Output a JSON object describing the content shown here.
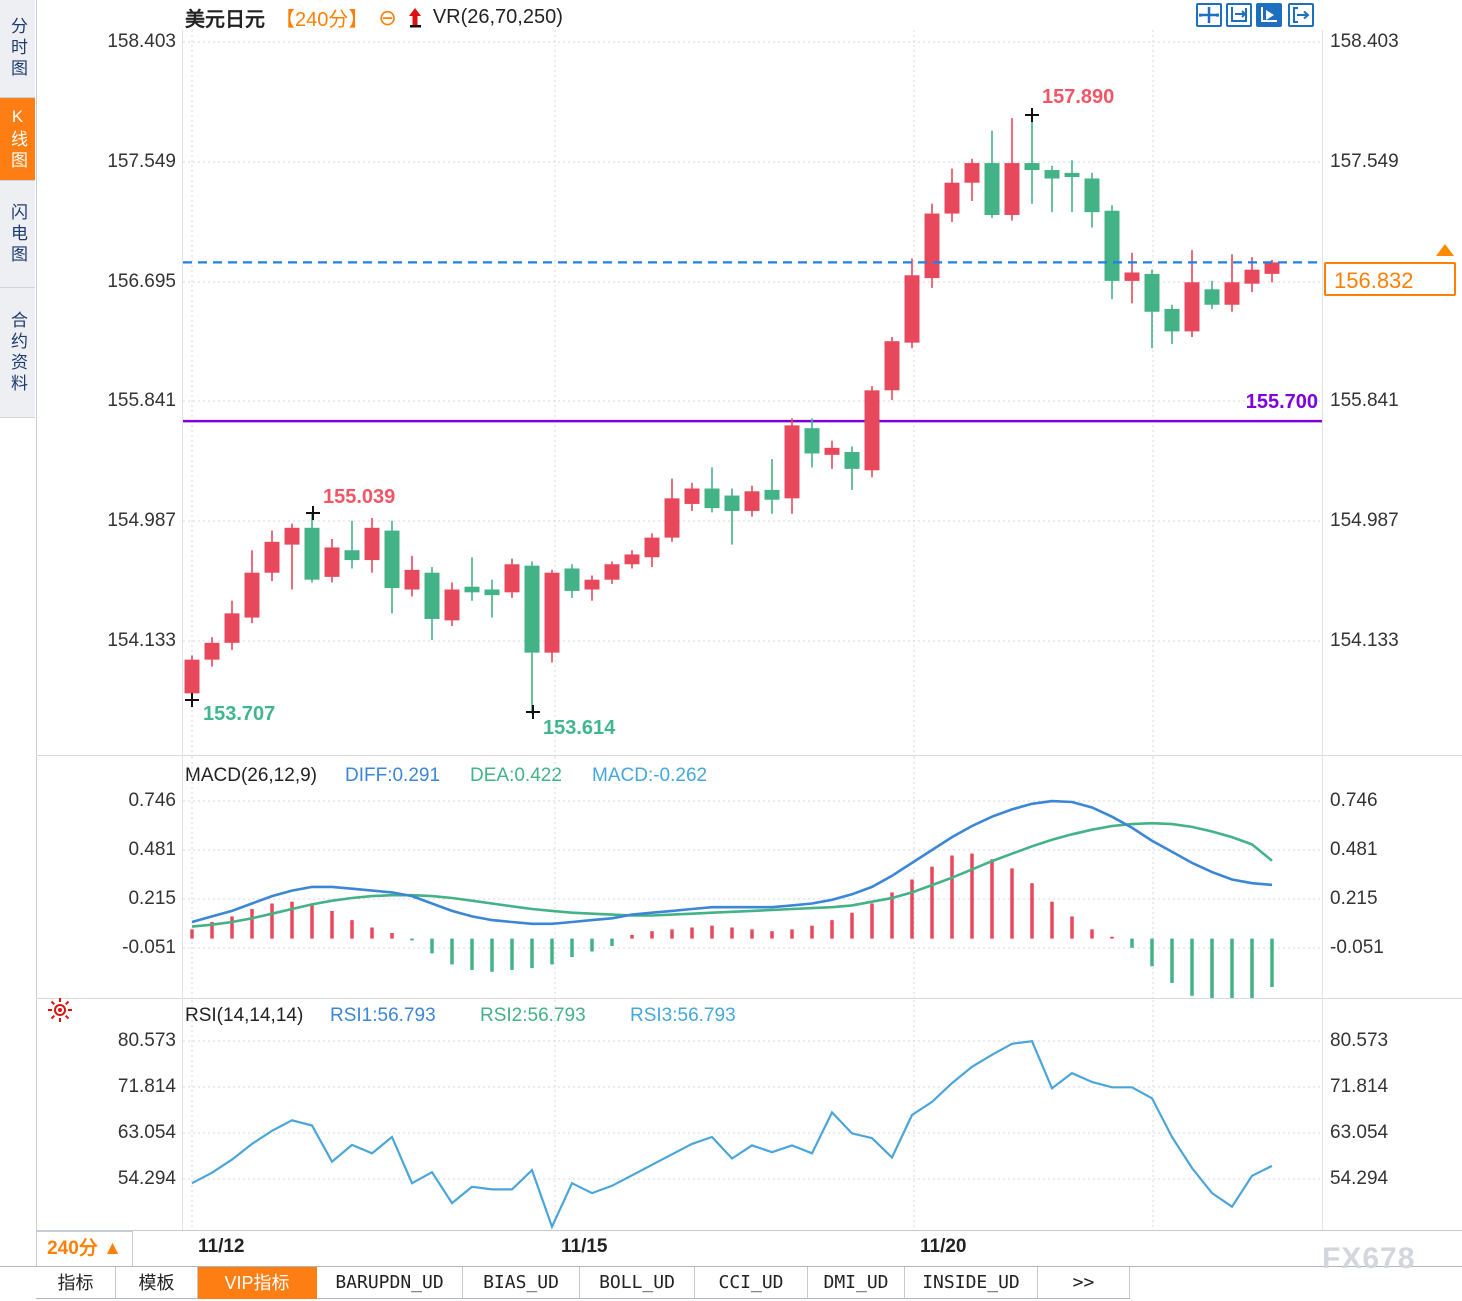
{
  "header": {
    "symbol": "美元日元",
    "period": "【240分】",
    "minus_icon": "⊖",
    "indicator": "VR(26,70,250)"
  },
  "sidebar": {
    "items": [
      {
        "label": "分时图",
        "active": false
      },
      {
        "label": "K线图",
        "active": true
      },
      {
        "label": "闪电图",
        "active": false
      },
      {
        "label": "合约资料",
        "active": false
      }
    ]
  },
  "toolbar": {
    "icons": [
      "move-crosshair-icon",
      "fit-axes-icon",
      "play-axis-icon",
      "exit-right-icon"
    ],
    "active_index": 2
  },
  "main_axis": [
    "158.403",
    "157.549",
    "156.695",
    "155.841",
    "154.987",
    "154.133"
  ],
  "annotations": {
    "swing_high_1": "155.039",
    "swing_low_1": "153.707",
    "swing_low_2": "153.614",
    "swing_high_2": "157.890",
    "hline_label": "155.700",
    "current_price": "156.832"
  },
  "macd_panel": {
    "title": "MACD(26,12,9)",
    "diff_label": "DIFF:0.291",
    "dea_label": "DEA:0.422",
    "macd_label": "MACD:-0.262",
    "axis": [
      "0.746",
      "0.481",
      "0.215",
      "-0.051"
    ]
  },
  "rsi_panel": {
    "title": "RSI(14,14,14)",
    "rsi1_label": "RSI1:56.793",
    "rsi2_label": "RSI2:56.793",
    "rsi3_label": "RSI3:56.793",
    "axis": [
      "80.573",
      "71.814",
      "63.054",
      "54.294"
    ]
  },
  "xaxis": {
    "period_badge": "240分 ▲",
    "dates": [
      "11/12",
      "11/15",
      "11/20"
    ]
  },
  "tabs": [
    {
      "label": "指标",
      "active": false
    },
    {
      "label": "模板",
      "active": false
    },
    {
      "label": "VIP指标",
      "active": true
    },
    {
      "label": "BARUPDN_UD",
      "active": false
    },
    {
      "label": "BIAS_UD",
      "active": false
    },
    {
      "label": "BOLL_UD",
      "active": false
    },
    {
      "label": "CCI_UD",
      "active": false
    },
    {
      "label": "DMI_UD",
      "active": false
    },
    {
      "label": "INSIDE_UD",
      "active": false
    },
    {
      "label": ">>",
      "active": false
    }
  ],
  "watermark": "FX678",
  "colors": {
    "up": "#e8485c",
    "down": "#43b286",
    "diff_line": "#3b86d6",
    "dea_line": "#43b286",
    "rsi_line": "#4aa6d9",
    "current_line": "#1e80e6",
    "hline": "#7e00dc",
    "accent": "#ff7f05",
    "grid": "#d8d9e0"
  },
  "chart_data": [
    {
      "type": "candlestick",
      "title": "美元日元 240分",
      "ylabels": [
        158.403,
        157.549,
        156.695,
        155.841,
        154.987,
        154.133
      ],
      "current_price": 156.832,
      "support_line": 155.7,
      "x_dates": [
        "11/12",
        "11/15",
        "11/20"
      ],
      "candles": [
        [
          153.76,
          154.03,
          153.707,
          154.0
        ],
        [
          154.0,
          154.16,
          153.95,
          154.12
        ],
        [
          154.12,
          154.42,
          154.07,
          154.33
        ],
        [
          154.3,
          154.78,
          154.26,
          154.62
        ],
        [
          154.62,
          154.92,
          154.56,
          154.84
        ],
        [
          154.82,
          154.97,
          154.5,
          154.94
        ],
        [
          154.94,
          155.039,
          154.55,
          154.57
        ],
        [
          154.59,
          154.86,
          154.55,
          154.8
        ],
        [
          154.78,
          154.99,
          154.65,
          154.71
        ],
        [
          154.71,
          155.01,
          154.62,
          154.94
        ],
        [
          154.92,
          154.99,
          154.33,
          154.51
        ],
        [
          154.5,
          154.74,
          154.45,
          154.64
        ],
        [
          154.62,
          154.66,
          154.14,
          154.29
        ],
        [
          154.28,
          154.55,
          154.24,
          154.5
        ],
        [
          154.52,
          154.73,
          154.42,
          154.48
        ],
        [
          154.5,
          154.57,
          154.3,
          154.46
        ],
        [
          154.48,
          154.72,
          154.44,
          154.68
        ],
        [
          154.67,
          154.7,
          153.614,
          154.05
        ],
        [
          154.05,
          154.64,
          153.98,
          154.62
        ],
        [
          154.65,
          154.68,
          154.44,
          154.49
        ],
        [
          154.5,
          154.6,
          154.42,
          154.57
        ],
        [
          154.57,
          154.7,
          154.54,
          154.68
        ],
        [
          154.68,
          154.78,
          154.65,
          154.75
        ],
        [
          154.73,
          154.9,
          154.66,
          154.87
        ],
        [
          154.87,
          155.29,
          154.84,
          155.15
        ],
        [
          155.11,
          155.26,
          155.06,
          155.22
        ],
        [
          155.22,
          155.37,
          155.05,
          155.08
        ],
        [
          155.17,
          155.22,
          154.82,
          155.06
        ],
        [
          155.06,
          155.24,
          155.02,
          155.2
        ],
        [
          155.21,
          155.43,
          155.04,
          155.14
        ],
        [
          155.15,
          155.72,
          155.04,
          155.67
        ],
        [
          155.65,
          155.72,
          155.37,
          155.47
        ],
        [
          155.46,
          155.56,
          155.36,
          155.51
        ],
        [
          155.48,
          155.52,
          155.21,
          155.36
        ],
        [
          155.35,
          155.95,
          155.3,
          155.92
        ],
        [
          155.92,
          156.3,
          155.85,
          156.27
        ],
        [
          156.26,
          156.86,
          156.22,
          156.74
        ],
        [
          156.72,
          157.25,
          156.65,
          157.18
        ],
        [
          157.18,
          157.5,
          157.12,
          157.4
        ],
        [
          157.4,
          157.57,
          157.27,
          157.54
        ],
        [
          157.54,
          157.77,
          157.15,
          157.17
        ],
        [
          157.17,
          157.86,
          157.13,
          157.54
        ],
        [
          157.54,
          157.89,
          157.25,
          157.49
        ],
        [
          157.49,
          157.52,
          157.19,
          157.43
        ],
        [
          157.47,
          157.56,
          157.19,
          157.44
        ],
        [
          157.43,
          157.47,
          157.08,
          157.19
        ],
        [
          157.2,
          157.24,
          156.57,
          156.7
        ],
        [
          156.7,
          156.9,
          156.54,
          156.76
        ],
        [
          156.75,
          156.78,
          156.22,
          156.48
        ],
        [
          156.5,
          156.53,
          156.25,
          156.34
        ],
        [
          156.34,
          156.92,
          156.3,
          156.69
        ],
        [
          156.64,
          156.7,
          156.5,
          156.53
        ],
        [
          156.53,
          156.89,
          156.48,
          156.69
        ],
        [
          156.68,
          156.87,
          156.62,
          156.78
        ],
        [
          156.75,
          156.85,
          156.69,
          156.832
        ]
      ]
    },
    {
      "type": "macd",
      "title": "MACD(26,12,9)",
      "ylabels": [
        0.746,
        0.481,
        0.215,
        -0.051
      ],
      "diff": [
        0.09,
        0.12,
        0.15,
        0.19,
        0.23,
        0.26,
        0.28,
        0.28,
        0.27,
        0.26,
        0.25,
        0.23,
        0.19,
        0.15,
        0.12,
        0.1,
        0.09,
        0.08,
        0.08,
        0.09,
        0.1,
        0.11,
        0.13,
        0.14,
        0.15,
        0.16,
        0.17,
        0.17,
        0.17,
        0.17,
        0.18,
        0.19,
        0.21,
        0.24,
        0.28,
        0.34,
        0.41,
        0.48,
        0.55,
        0.61,
        0.66,
        0.7,
        0.73,
        0.745,
        0.74,
        0.71,
        0.66,
        0.6,
        0.53,
        0.47,
        0.41,
        0.36,
        0.32,
        0.3,
        0.291
      ],
      "dea": [
        0.065,
        0.075,
        0.09,
        0.11,
        0.135,
        0.16,
        0.185,
        0.205,
        0.22,
        0.23,
        0.235,
        0.235,
        0.23,
        0.22,
        0.205,
        0.19,
        0.175,
        0.16,
        0.15,
        0.14,
        0.135,
        0.13,
        0.125,
        0.125,
        0.13,
        0.135,
        0.14,
        0.145,
        0.15,
        0.155,
        0.16,
        0.165,
        0.17,
        0.18,
        0.2,
        0.22,
        0.25,
        0.29,
        0.33,
        0.375,
        0.42,
        0.46,
        0.5,
        0.535,
        0.565,
        0.59,
        0.61,
        0.62,
        0.625,
        0.62,
        0.605,
        0.58,
        0.55,
        0.51,
        0.422
      ],
      "hist": [
        0.05,
        0.09,
        0.12,
        0.16,
        0.19,
        0.2,
        0.19,
        0.15,
        0.1,
        0.06,
        0.03,
        -0.01,
        -0.08,
        -0.14,
        -0.17,
        -0.18,
        -0.17,
        -0.16,
        -0.14,
        -0.1,
        -0.07,
        -0.04,
        0.02,
        0.04,
        0.05,
        0.06,
        0.07,
        0.06,
        0.05,
        0.04,
        0.05,
        0.07,
        0.1,
        0.14,
        0.19,
        0.25,
        0.32,
        0.39,
        0.45,
        0.46,
        0.43,
        0.38,
        0.3,
        0.2,
        0.12,
        0.05,
        0.01,
        -0.05,
        -0.15,
        -0.24,
        -0.31,
        -0.35,
        -0.37,
        -0.36,
        -0.262
      ]
    },
    {
      "type": "line",
      "title": "RSI(14,14,14)",
      "ylabels": [
        80.573,
        71.814,
        63.054,
        54.294
      ],
      "rsi": [
        53.5,
        55.5,
        58.0,
        61.0,
        63.5,
        65.5,
        64.5,
        57.6,
        60.8,
        59.2,
        62.3,
        53.5,
        55.6,
        49.7,
        52.8,
        52.3,
        52.3,
        56.0,
        45.2,
        53.5,
        51.6,
        53.0,
        55.0,
        57.0,
        59.0,
        61.0,
        62.3,
        58.2,
        60.7,
        59.4,
        60.7,
        59.2,
        67.0,
        63.0,
        62.1,
        58.4,
        66.5,
        69.0,
        72.6,
        75.7,
        78.0,
        80.1,
        80.6,
        71.6,
        74.5,
        72.8,
        71.8,
        71.8,
        69.7,
        62.3,
        56.4,
        51.6,
        49.0,
        54.9,
        56.793
      ]
    }
  ]
}
